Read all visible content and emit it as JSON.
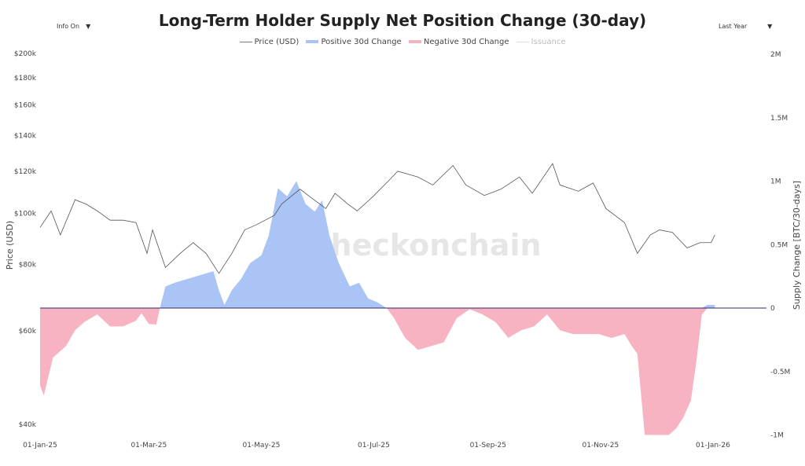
{
  "header": {
    "title": "Long-Term Holder Supply Net Position Change (30-day)",
    "info_toggle": "Info On",
    "range_select": "Last Year"
  },
  "chart_data": {
    "type": "area",
    "title": "Long-Term Holder Supply Net Position Change (30-day)",
    "legend": [
      "Price (USD)",
      "Positive 30d Change",
      "Negative 30d Change",
      "Issuance"
    ],
    "legend_placement": "top-center",
    "watermark": "checkonchain",
    "ylabel_left": "Price (USD)",
    "ylabel_right": "Supply Change [BTC/30-days]",
    "y_left_scale": "log",
    "y_left_range": [
      40000,
      200000
    ],
    "y_right_range": [
      -1000000,
      2000000
    ],
    "x_range": [
      "2025-01-01",
      "2026-01-30"
    ],
    "x_ticks": [
      "01-Jan-25",
      "01-Mar-25",
      "01-May-25",
      "01-Jul-25",
      "01-Sep-25",
      "01-Nov-25",
      "01-Jan-26"
    ],
    "y_left_ticks": [
      "$40k",
      "$60k",
      "$80k",
      "$100k",
      "$120k",
      "$140k",
      "$160k",
      "$180k",
      "$200k"
    ],
    "y_left_tick_values": [
      40000,
      60000,
      80000,
      100000,
      120000,
      140000,
      160000,
      180000,
      200000
    ],
    "y_right_ticks": [
      "-1M",
      "-0.5M",
      "0",
      "0.5M",
      "1M",
      "1.5M",
      "2M"
    ],
    "y_right_tick_values": [
      -1000000,
      -500000,
      0,
      500000,
      1000000,
      1500000,
      2000000
    ],
    "colors": {
      "price": "#555555",
      "positive": "#a9c4f5",
      "negative": "#f7b3c2",
      "zero_line": "#2a2a6a",
      "issuance": "#dddddd"
    },
    "price": [
      [
        "2025-01-01",
        94000
      ],
      [
        "2025-01-07",
        101000
      ],
      [
        "2025-01-12",
        91000
      ],
      [
        "2025-01-20",
        106000
      ],
      [
        "2025-01-26",
        104000
      ],
      [
        "2025-02-01",
        101000
      ],
      [
        "2025-02-08",
        97000
      ],
      [
        "2025-02-15",
        97000
      ],
      [
        "2025-02-22",
        96000
      ],
      [
        "2025-02-28",
        84000
      ],
      [
        "2025-03-03",
        93000
      ],
      [
        "2025-03-10",
        79000
      ],
      [
        "2025-03-18",
        84000
      ],
      [
        "2025-03-25",
        88000
      ],
      [
        "2025-04-01",
        84000
      ],
      [
        "2025-04-08",
        77000
      ],
      [
        "2025-04-15",
        84000
      ],
      [
        "2025-04-22",
        93000
      ],
      [
        "2025-04-28",
        95000
      ],
      [
        "2025-05-08",
        99000
      ],
      [
        "2025-05-12",
        104000
      ],
      [
        "2025-05-22",
        111000
      ],
      [
        "2025-05-28",
        107000
      ],
      [
        "2025-06-05",
        102000
      ],
      [
        "2025-06-10",
        109000
      ],
      [
        "2025-06-17",
        104000
      ],
      [
        "2025-06-22",
        101000
      ],
      [
        "2025-06-30",
        107000
      ],
      [
        "2025-07-10",
        116000
      ],
      [
        "2025-07-14",
        120000
      ],
      [
        "2025-07-25",
        117000
      ],
      [
        "2025-08-02",
        113000
      ],
      [
        "2025-08-13",
        123000
      ],
      [
        "2025-08-20",
        113000
      ],
      [
        "2025-08-30",
        108000
      ],
      [
        "2025-09-08",
        111000
      ],
      [
        "2025-09-18",
        117000
      ],
      [
        "2025-09-25",
        109000
      ],
      [
        "2025-10-06",
        124000
      ],
      [
        "2025-10-10",
        113000
      ],
      [
        "2025-10-20",
        110000
      ],
      [
        "2025-10-28",
        114000
      ],
      [
        "2025-11-04",
        102000
      ],
      [
        "2025-11-14",
        96000
      ],
      [
        "2025-11-21",
        84000
      ],
      [
        "2025-11-28",
        91000
      ],
      [
        "2025-12-03",
        93000
      ],
      [
        "2025-12-10",
        92000
      ],
      [
        "2025-12-18",
        86000
      ],
      [
        "2025-12-25",
        88000
      ],
      [
        "2025-12-31",
        88000
      ],
      [
        "2026-01-02",
        91000
      ]
    ],
    "supply_change": [
      [
        "2025-01-01",
        -610000
      ],
      [
        "2025-01-03",
        -690000
      ],
      [
        "2025-01-08",
        -390000
      ],
      [
        "2025-01-15",
        -300000
      ],
      [
        "2025-01-20",
        -175000
      ],
      [
        "2025-01-25",
        -110000
      ],
      [
        "2025-02-01",
        -50000
      ],
      [
        "2025-02-08",
        -145000
      ],
      [
        "2025-02-15",
        -145000
      ],
      [
        "2025-02-22",
        -100000
      ],
      [
        "2025-02-25",
        -40000
      ],
      [
        "2025-03-01",
        -125000
      ],
      [
        "2025-03-05",
        -130000
      ],
      [
        "2025-03-07",
        0
      ],
      [
        "2025-03-10",
        170000
      ],
      [
        "2025-03-15",
        200000
      ],
      [
        "2025-03-22",
        230000
      ],
      [
        "2025-03-29",
        260000
      ],
      [
        "2025-04-05",
        290000
      ],
      [
        "2025-04-08",
        140000
      ],
      [
        "2025-04-11",
        25000
      ],
      [
        "2025-04-15",
        140000
      ],
      [
        "2025-04-20",
        230000
      ],
      [
        "2025-04-25",
        355000
      ],
      [
        "2025-05-01",
        415000
      ],
      [
        "2025-05-05",
        570000
      ],
      [
        "2025-05-10",
        945000
      ],
      [
        "2025-05-15",
        880000
      ],
      [
        "2025-05-20",
        1000000
      ],
      [
        "2025-05-25",
        820000
      ],
      [
        "2025-05-30",
        760000
      ],
      [
        "2025-06-03",
        850000
      ],
      [
        "2025-06-07",
        570000
      ],
      [
        "2025-06-12",
        355000
      ],
      [
        "2025-06-18",
        170000
      ],
      [
        "2025-06-23",
        200000
      ],
      [
        "2025-06-28",
        75000
      ],
      [
        "2025-07-03",
        45000
      ],
      [
        "2025-07-08",
        0
      ],
      [
        "2025-07-12",
        -80000
      ],
      [
        "2025-07-18",
        -235000
      ],
      [
        "2025-07-25",
        -330000
      ],
      [
        "2025-08-01",
        -300000
      ],
      [
        "2025-08-08",
        -270000
      ],
      [
        "2025-08-15",
        -80000
      ],
      [
        "2025-08-22",
        -10000
      ],
      [
        "2025-08-29",
        -50000
      ],
      [
        "2025-09-05",
        -110000
      ],
      [
        "2025-09-12",
        -235000
      ],
      [
        "2025-09-19",
        -175000
      ],
      [
        "2025-09-26",
        -145000
      ],
      [
        "2025-10-03",
        -50000
      ],
      [
        "2025-10-10",
        -175000
      ],
      [
        "2025-10-17",
        -205000
      ],
      [
        "2025-10-24",
        -205000
      ],
      [
        "2025-10-31",
        -205000
      ],
      [
        "2025-11-07",
        -235000
      ],
      [
        "2025-11-14",
        -205000
      ],
      [
        "2025-11-18",
        -300000
      ],
      [
        "2025-11-21",
        -360000
      ],
      [
        "2025-11-25",
        -1000000
      ],
      [
        "2025-12-01",
        -1000000
      ],
      [
        "2025-12-08",
        -1000000
      ],
      [
        "2025-12-12",
        -950000
      ],
      [
        "2025-12-16",
        -860000
      ],
      [
        "2025-12-20",
        -730000
      ],
      [
        "2025-12-23",
        -420000
      ],
      [
        "2025-12-26",
        -50000
      ],
      [
        "2025-12-29",
        25000
      ],
      [
        "2026-01-02",
        25000
      ]
    ]
  }
}
